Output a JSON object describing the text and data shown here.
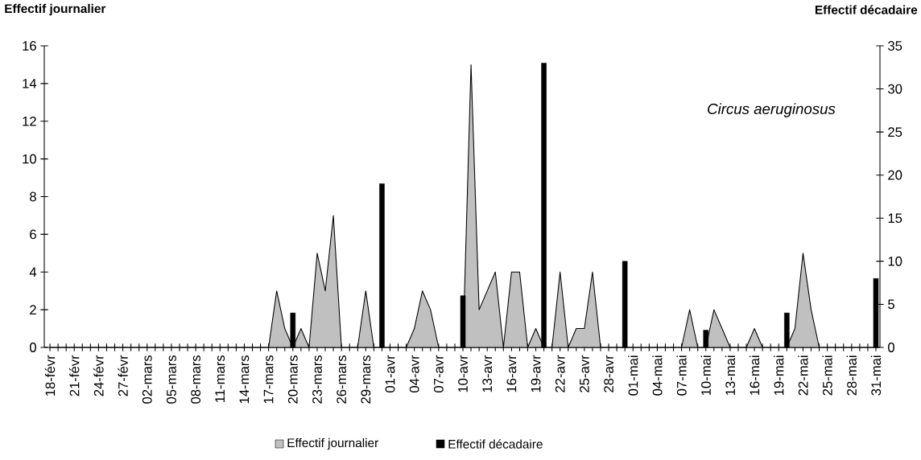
{
  "chart_data": {
    "type": "area",
    "ylabel": "Effectif journalier",
    "y2label": "Effectif décadaire",
    "annotations": [
      "Circus aeruginosus"
    ],
    "categories": [
      "18-févr",
      null,
      null,
      "21-févr",
      null,
      null,
      "24-févr",
      null,
      null,
      "27-févr",
      null,
      null,
      "02-mars",
      null,
      null,
      "05-mars",
      null,
      null,
      "08-mars",
      null,
      null,
      "11-mars",
      null,
      null,
      "14-mars",
      null,
      null,
      "17-mars",
      null,
      null,
      "20-mars",
      null,
      null,
      "23-mars",
      null,
      null,
      "26-mars",
      null,
      null,
      "29-mars",
      null,
      null,
      "01-avr",
      null,
      null,
      "04-avr",
      null,
      null,
      "07-avr",
      null,
      null,
      "10-avr",
      null,
      null,
      "13-avr",
      null,
      null,
      "16-avr",
      null,
      null,
      "19-avr",
      null,
      null,
      "22-avr",
      null,
      null,
      "25-avr",
      null,
      null,
      "28-avr",
      null,
      null,
      "01-mai",
      null,
      null,
      "04-mai",
      null,
      null,
      "07-mai",
      null,
      null,
      "10-mai",
      null,
      null,
      "13-mai",
      null,
      null,
      "16-mai",
      null,
      null,
      "19-mai",
      null,
      null,
      "22-mai",
      null,
      null,
      "25-mai",
      null,
      null,
      "28-mai",
      null,
      null,
      "31-mai"
    ],
    "series": [
      {
        "name": "Effectif journalier",
        "color": "#c0c0c0",
        "values": [
          0,
          0,
          0,
          0,
          0,
          0,
          0,
          0,
          0,
          0,
          0,
          0,
          0,
          0,
          0,
          0,
          0,
          0,
          0,
          0,
          0,
          0,
          0,
          0,
          0,
          0,
          0,
          0,
          3,
          1,
          0,
          1,
          0,
          5,
          3,
          7,
          0,
          0,
          0,
          3,
          0,
          0,
          0,
          0,
          0,
          1,
          3,
          2,
          0,
          0,
          0,
          0,
          15,
          2,
          3,
          4,
          0,
          4,
          4,
          0,
          1,
          0,
          0,
          4,
          0,
          1,
          1,
          4,
          0,
          0,
          0,
          0,
          0,
          0,
          0,
          0,
          0,
          0,
          0,
          2,
          0,
          0,
          2,
          1,
          0,
          0,
          0,
          1,
          0,
          0,
          0,
          0,
          1,
          5,
          2,
          0,
          0,
          0,
          0,
          0,
          0,
          0,
          0
        ]
      },
      {
        "name": "Effectif décadaire",
        "type": "bar",
        "axis": "y2",
        "color": "#000000",
        "values": [
          null,
          null,
          null,
          null,
          null,
          null,
          null,
          null,
          null,
          null,
          null,
          null,
          null,
          null,
          null,
          null,
          null,
          null,
          null,
          null,
          null,
          null,
          null,
          null,
          null,
          null,
          null,
          null,
          null,
          null,
          4,
          null,
          null,
          null,
          null,
          null,
          null,
          null,
          null,
          null,
          null,
          19,
          null,
          null,
          null,
          null,
          null,
          null,
          null,
          null,
          null,
          6,
          null,
          null,
          null,
          null,
          null,
          null,
          null,
          null,
          null,
          33,
          null,
          null,
          null,
          null,
          null,
          null,
          null,
          null,
          null,
          10,
          null,
          null,
          null,
          null,
          null,
          null,
          null,
          null,
          null,
          2,
          null,
          null,
          null,
          null,
          null,
          null,
          null,
          null,
          null,
          4,
          null,
          null,
          null,
          null,
          null,
          null,
          null,
          null,
          null,
          null,
          8
        ]
      }
    ],
    "ylim": [
      0,
      16
    ],
    "yticks": [
      0,
      2,
      4,
      6,
      8,
      10,
      12,
      14,
      16
    ],
    "y2lim": [
      0,
      35
    ],
    "y2ticks": [
      0,
      5,
      10,
      15,
      20,
      25,
      30,
      35
    ],
    "legend": "bottom"
  }
}
